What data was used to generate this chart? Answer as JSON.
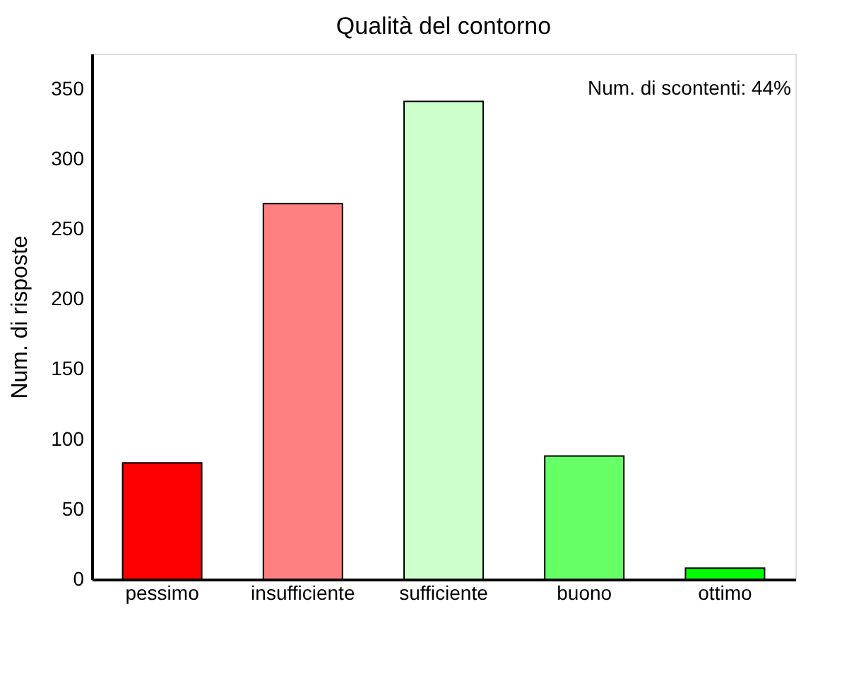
{
  "chart_data": {
    "type": "bar",
    "title": "Qualità del contorno",
    "ylabel": "Num. di risposte",
    "categories": [
      "pessimo",
      "insufficiente",
      "sufficiente",
      "buono",
      "ottimo"
    ],
    "values": [
      83,
      268,
      341,
      88,
      8
    ],
    "colors": [
      "#ff0000",
      "#ff8080",
      "#ccffcc",
      "#66ff66",
      "#00ff00"
    ],
    "ylim": [
      0,
      375
    ],
    "yticks": [
      0,
      50,
      100,
      150,
      200,
      250,
      300,
      350
    ],
    "grid": false,
    "annotations": [
      "Num. di scontenti: 44%"
    ]
  }
}
